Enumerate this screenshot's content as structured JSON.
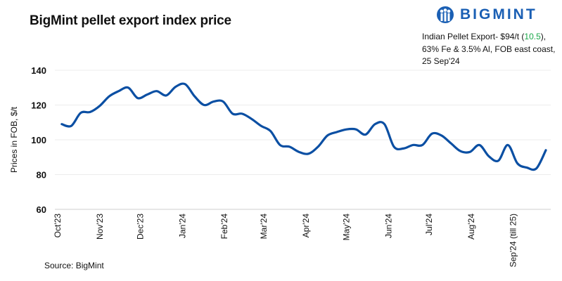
{
  "logo": {
    "text": "BIGMINT"
  },
  "note": {
    "prefix": "Indian Pellet Export- $94/t (",
    "change": "10.5",
    "suffix": "),",
    "line2": "63% Fe & 3.5% Al, FOB east coast,",
    "line3": "25 Sep'24",
    "change_color": "#1aa84a"
  },
  "source": "Source: BigMint",
  "chart_data": {
    "type": "line",
    "title": "BigMint pellet export index price",
    "ylabel": "Prices in FOB, $/t",
    "xlabel": "",
    "ylim": [
      60,
      140
    ],
    "yticks": [
      60,
      80,
      100,
      120,
      140
    ],
    "grid": true,
    "line_color": "#0b4fa3",
    "xticks": [
      {
        "date": "2023-10-01",
        "label": "Oct'23"
      },
      {
        "date": "2023-11-01",
        "label": "Nov'23"
      },
      {
        "date": "2023-12-01",
        "label": "Dec'23"
      },
      {
        "date": "2024-01-01",
        "label": "Jan'24"
      },
      {
        "date": "2024-02-01",
        "label": "Feb'24"
      },
      {
        "date": "2024-03-01",
        "label": "Mar'24"
      },
      {
        "date": "2024-04-01",
        "label": "Apr'24"
      },
      {
        "date": "2024-05-01",
        "label": "May'24"
      },
      {
        "date": "2024-06-01",
        "label": "Jun'24"
      },
      {
        "date": "2024-07-01",
        "label": "Jul'24"
      },
      {
        "date": "2024-08-01",
        "label": "Aug'24"
      },
      {
        "date": "2024-09-01",
        "label": "Sep'24 (till 25)"
      }
    ],
    "x": [
      "2023-10-04",
      "2023-10-11",
      "2023-10-18",
      "2023-10-25",
      "2023-11-01",
      "2023-11-08",
      "2023-11-15",
      "2023-11-22",
      "2023-11-29",
      "2023-12-06",
      "2023-12-13",
      "2023-12-20",
      "2023-12-27",
      "2024-01-03",
      "2024-01-10",
      "2024-01-17",
      "2024-01-24",
      "2024-01-31",
      "2024-02-07",
      "2024-02-14",
      "2024-02-21",
      "2024-02-28",
      "2024-03-06",
      "2024-03-13",
      "2024-03-20",
      "2024-03-27",
      "2024-04-03",
      "2024-04-10",
      "2024-04-17",
      "2024-04-24",
      "2024-05-01",
      "2024-05-08",
      "2024-05-15",
      "2024-05-22",
      "2024-05-29",
      "2024-06-05",
      "2024-06-12",
      "2024-06-19",
      "2024-06-26",
      "2024-07-03",
      "2024-07-10",
      "2024-07-17",
      "2024-07-24",
      "2024-07-31",
      "2024-08-07",
      "2024-08-14",
      "2024-08-21",
      "2024-08-28",
      "2024-09-04",
      "2024-09-11",
      "2024-09-18",
      "2024-09-25"
    ],
    "values": [
      109,
      108,
      115.5,
      116,
      119.5,
      125,
      128,
      130,
      124,
      126,
      128,
      125.5,
      130.5,
      132,
      125,
      120,
      122,
      122,
      115,
      115,
      112,
      108,
      105,
      97,
      96,
      93,
      92,
      96,
      102.5,
      104.5,
      106,
      106,
      103,
      109,
      109,
      96,
      95,
      97,
      97,
      103.5,
      102.5,
      98,
      93.5,
      93,
      97,
      90.5,
      88,
      97,
      86.5,
      84,
      83.5,
      94
    ]
  }
}
